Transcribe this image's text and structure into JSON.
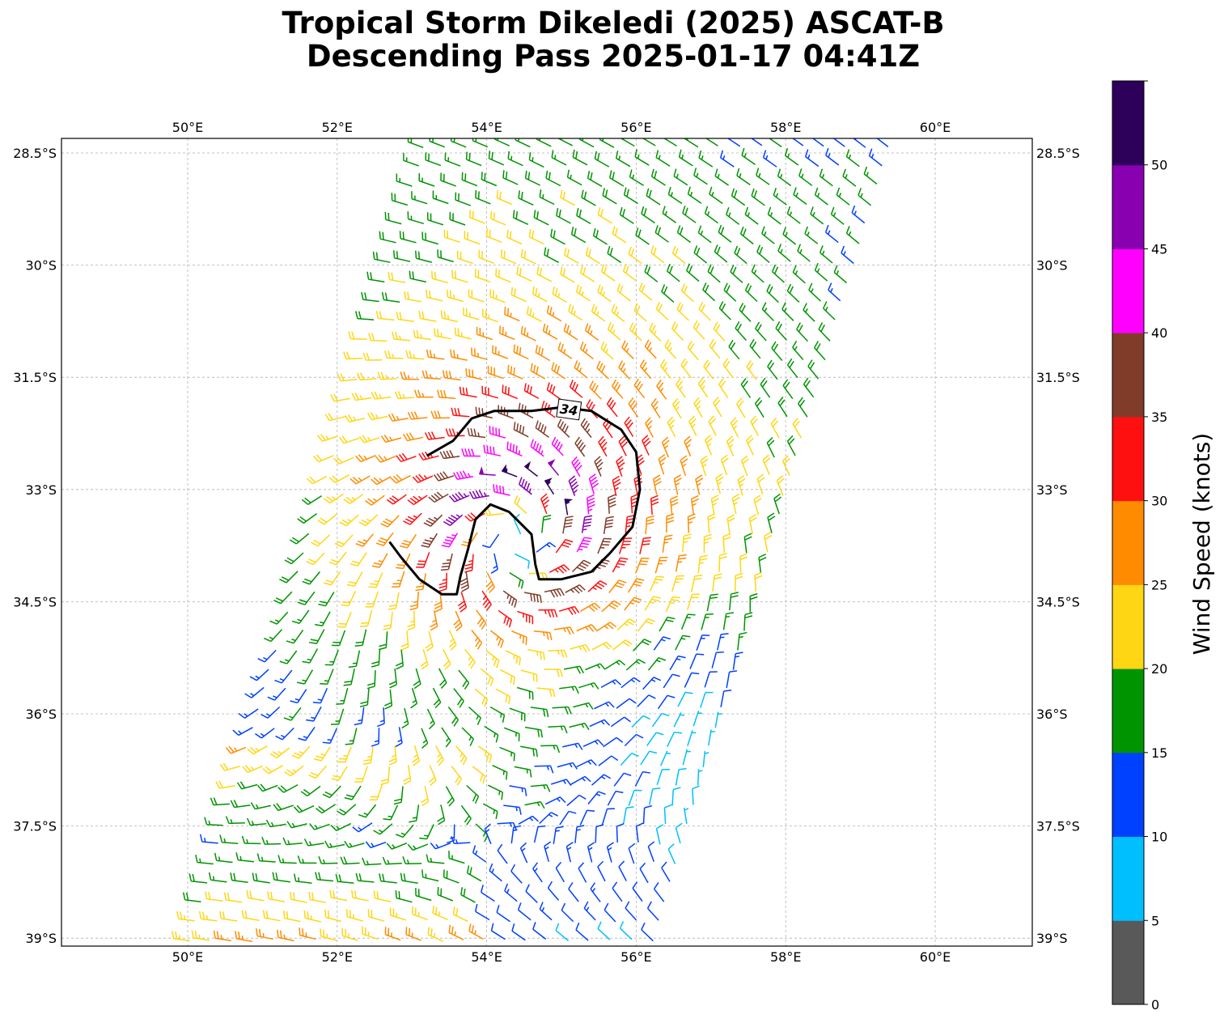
{
  "title_line1": "Tropical Storm Dikeledi (2025) ASCAT-B",
  "title_line2": "Descending Pass 2025-01-17 04:41Z",
  "map": {
    "lon_range": [
      48.3,
      61.3
    ],
    "lat_range": [
      -39.1,
      -28.3
    ],
    "lon_ticks": [
      50,
      52,
      54,
      56,
      58,
      60
    ],
    "lon_tick_labels": [
      "50°E",
      "52°E",
      "54°E",
      "56°E",
      "58°E",
      "60°E"
    ],
    "lat_ticks": [
      -28.5,
      -30,
      -31.5,
      -33,
      -34.5,
      -36,
      -37.5,
      -39
    ],
    "lat_tick_labels": [
      "28.5°S",
      "30°S",
      "31.5°S",
      "33°S",
      "34.5°S",
      "36°S",
      "37.5°S",
      "39°S"
    ],
    "grid": true,
    "storm_center": [
      54.4,
      -33.65
    ],
    "contour_label": "34"
  },
  "colorbar": {
    "label": "Wind Speed (knots)",
    "ticks": [
      "0",
      "5",
      "10",
      "15",
      "20",
      "25",
      "30",
      "35",
      "40",
      "45",
      "50"
    ],
    "bins": [
      {
        "min": 0,
        "max": 5,
        "color": "#595959"
      },
      {
        "min": 5,
        "max": 10,
        "color": "#00bfff"
      },
      {
        "min": 10,
        "max": 15,
        "color": "#0040ff"
      },
      {
        "min": 15,
        "max": 20,
        "color": "#009400"
      },
      {
        "min": 20,
        "max": 25,
        "color": "#ffd614"
      },
      {
        "min": 25,
        "max": 30,
        "color": "#ff8c00"
      },
      {
        "min": 30,
        "max": 35,
        "color": "#ff1010"
      },
      {
        "min": 35,
        "max": 40,
        "color": "#803c28"
      },
      {
        "min": 40,
        "max": 45,
        "color": "#ff00ff"
      },
      {
        "min": 45,
        "max": 50,
        "color": "#8800b0"
      },
      {
        "min": 50,
        "max": 55,
        "color": "#2d005a"
      }
    ]
  },
  "chart_data": {
    "type": "scatter",
    "description_series": "ASCAT-B wind barbs along descending swath",
    "wind_field": {
      "center_lon": 54.4,
      "center_lat": -33.65,
      "swath_left_edge_top": [
        53.2,
        -28.4
      ],
      "swath_right_edge_top": [
        59.6,
        -28.4
      ],
      "swath_left_edge_bottom": [
        50.0,
        -39.1
      ],
      "swath_right_edge_bottom": [
        56.4,
        -39.1
      ],
      "max_wind_kt": 52,
      "radius_max_wind_deg": 0.75
    },
    "contour_34kt": [
      [
        53.2,
        -32.55
      ],
      [
        53.55,
        -32.35
      ],
      [
        53.8,
        -32.05
      ],
      [
        54.1,
        -31.95
      ],
      [
        54.6,
        -31.95
      ],
      [
        55.0,
        -31.9
      ],
      [
        55.4,
        -31.95
      ],
      [
        55.8,
        -32.2
      ],
      [
        56.0,
        -32.5
      ],
      [
        56.05,
        -33.0
      ],
      [
        55.95,
        -33.5
      ],
      [
        55.65,
        -33.85
      ],
      [
        55.4,
        -34.1
      ],
      [
        55.0,
        -34.2
      ],
      [
        54.7,
        -34.2
      ],
      [
        54.65,
        -34.0
      ],
      [
        54.6,
        -33.6
      ],
      [
        54.3,
        -33.3
      ],
      [
        54.05,
        -33.2
      ],
      [
        53.85,
        -33.4
      ],
      [
        53.75,
        -33.8
      ],
      [
        53.65,
        -34.15
      ],
      [
        53.6,
        -34.4
      ],
      [
        53.4,
        -34.4
      ],
      [
        53.1,
        -34.2
      ],
      [
        52.85,
        -33.9
      ],
      [
        52.7,
        -33.7
      ]
    ]
  }
}
